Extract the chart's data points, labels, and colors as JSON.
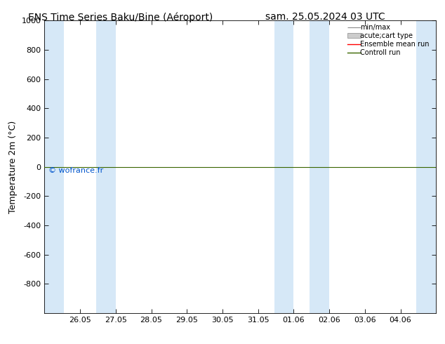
{
  "title_left": "ENS Time Series Baku/Bine (Aéroport)",
  "title_right": "sam. 25.05.2024 03 UTC",
  "ylabel": "Temperature 2m (°C)",
  "ylim_top": -1000,
  "ylim_bottom": 1000,
  "yticks": [
    -800,
    -600,
    -400,
    -200,
    0,
    200,
    400,
    600,
    800,
    1000
  ],
  "xtick_labels": [
    "26.05",
    "27.05",
    "28.05",
    "29.05",
    "30.05",
    "31.05",
    "01.06",
    "02.06",
    "03.06",
    "04.06"
  ],
  "xtick_positions": [
    1,
    2,
    3,
    4,
    5,
    6,
    7,
    8,
    9,
    10
  ],
  "xlim": [
    0,
    11
  ],
  "green_line_y": 0,
  "shaded_columns": [
    [
      0.0,
      0.55
    ],
    [
      1.45,
      2.0
    ],
    [
      6.45,
      7.0
    ],
    [
      7.45,
      8.0
    ],
    [
      10.45,
      11.0
    ]
  ],
  "shade_color": "#d6e8f7",
  "background_color": "#ffffff",
  "plot_bg_color": "#ffffff",
  "green_line_color": "#3a6600",
  "red_line_color": "#ff0000",
  "watermark_text": "© wofrance.fr",
  "watermark_color": "#0055cc",
  "legend_labels": [
    "min/max",
    "acute;cart type",
    "Ensemble mean run",
    "Controll run"
  ],
  "title_fontsize": 10,
  "tick_fontsize": 8,
  "ylabel_fontsize": 9
}
